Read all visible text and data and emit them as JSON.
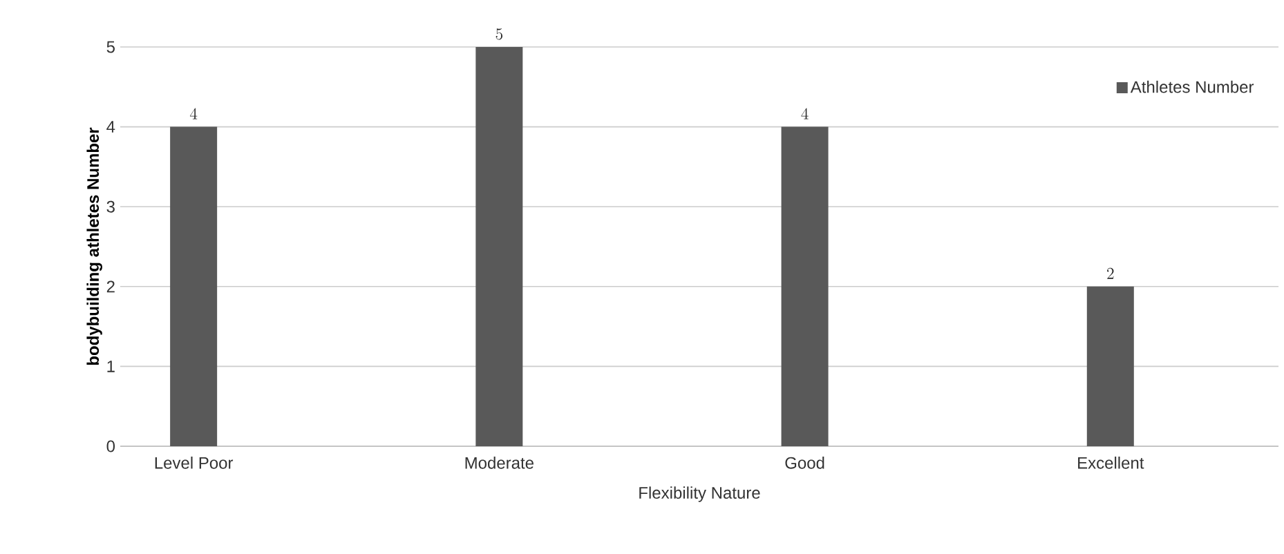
{
  "chart_data": {
    "type": "bar",
    "categories": [
      "Level Poor",
      "Moderate",
      "Good",
      "Excellent"
    ],
    "series": [
      {
        "name": "Athletes Number",
        "color": "#595959",
        "values": [
          4,
          5,
          4,
          2
        ]
      }
    ],
    "xlabel": "Flexibility Nature",
    "ylabel": "bodybuilding athletes Number",
    "ylim": [
      0,
      5
    ],
    "yticks": [
      0,
      1,
      2,
      3,
      4,
      5
    ],
    "grid": "y",
    "legend": "top right",
    "data_labels": true
  }
}
